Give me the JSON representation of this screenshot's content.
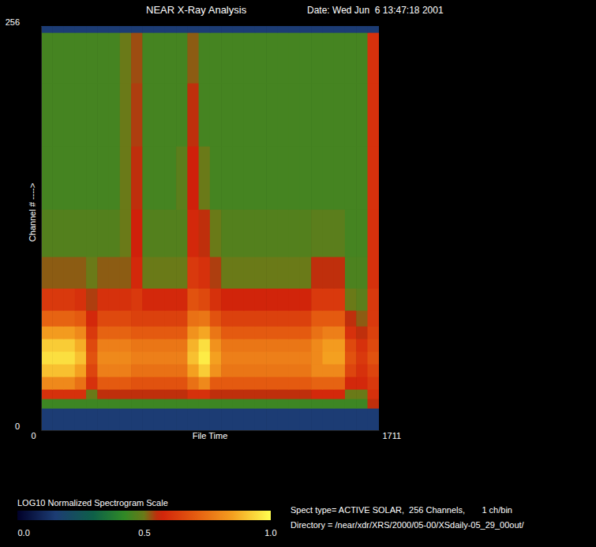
{
  "chart_data": {
    "type": "heatmap",
    "title": "NEAR X-Ray Analysis",
    "subtitle": "Date: Wed Jun  6 13:47:18 2001",
    "x_label": "File Time",
    "y_label": "Channel # ---->",
    "xlim": [
      0,
      1711
    ],
    "ylim": [
      0,
      256
    ],
    "xticks": [
      0,
      1711
    ],
    "yticks": [
      0,
      256
    ],
    "x_edges": [
      0,
      57,
      114,
      171,
      228,
      285,
      342,
      399,
      456,
      513,
      570,
      627,
      684,
      741,
      798,
      855,
      912,
      969,
      1026,
      1083,
      1140,
      1197,
      1254,
      1311,
      1368,
      1425,
      1482,
      1539,
      1596,
      1653,
      1711
    ],
    "y_edges": [
      0,
      14,
      20,
      26,
      34,
      42,
      50,
      58,
      66,
      76,
      90,
      110,
      140,
      180,
      220,
      252,
      256
    ],
    "z": [
      [
        0.15,
        0.15,
        0.15,
        0.15,
        0.15,
        0.15,
        0.15,
        0.15,
        0.15,
        0.15,
        0.15,
        0.15,
        0.15,
        0.15,
        0.15,
        0.15,
        0.15,
        0.15,
        0.15,
        0.15,
        0.15,
        0.15,
        0.15,
        0.15,
        0.15,
        0.15,
        0.15,
        0.15,
        0.15,
        0.15
      ],
      [
        0.44,
        0.44,
        0.44,
        0.44,
        0.44,
        0.44,
        0.44,
        0.44,
        0.44,
        0.44,
        0.44,
        0.44,
        0.44,
        0.44,
        0.44,
        0.44,
        0.44,
        0.44,
        0.44,
        0.44,
        0.44,
        0.44,
        0.44,
        0.44,
        0.44,
        0.44,
        0.44,
        0.44,
        0.44,
        0.55
      ],
      [
        0.6,
        0.6,
        0.6,
        0.6,
        0.5,
        0.55,
        0.55,
        0.55,
        0.55,
        0.55,
        0.55,
        0.55,
        0.55,
        0.6,
        0.6,
        0.55,
        0.55,
        0.55,
        0.55,
        0.55,
        0.55,
        0.55,
        0.55,
        0.55,
        0.58,
        0.58,
        0.58,
        0.5,
        0.5,
        0.6
      ],
      [
        0.8,
        0.8,
        0.8,
        0.75,
        0.6,
        0.7,
        0.7,
        0.7,
        0.68,
        0.68,
        0.68,
        0.68,
        0.68,
        0.75,
        0.8,
        0.7,
        0.7,
        0.7,
        0.7,
        0.7,
        0.7,
        0.7,
        0.7,
        0.7,
        0.72,
        0.72,
        0.72,
        0.58,
        0.58,
        0.62
      ],
      [
        0.9,
        0.9,
        0.9,
        0.85,
        0.65,
        0.78,
        0.78,
        0.78,
        0.75,
        0.75,
        0.75,
        0.75,
        0.75,
        0.85,
        0.92,
        0.82,
        0.76,
        0.76,
        0.76,
        0.76,
        0.76,
        0.76,
        0.76,
        0.76,
        0.8,
        0.8,
        0.8,
        0.65,
        0.6,
        0.65
      ],
      [
        0.95,
        0.95,
        0.95,
        0.9,
        0.68,
        0.8,
        0.8,
        0.8,
        0.78,
        0.78,
        0.78,
        0.78,
        0.78,
        0.9,
        0.97,
        0.85,
        0.78,
        0.78,
        0.78,
        0.78,
        0.78,
        0.78,
        0.78,
        0.78,
        0.8,
        0.85,
        0.85,
        0.68,
        0.62,
        0.68
      ],
      [
        0.92,
        0.92,
        0.92,
        0.87,
        0.66,
        0.78,
        0.78,
        0.78,
        0.76,
        0.76,
        0.76,
        0.76,
        0.76,
        0.88,
        0.95,
        0.82,
        0.76,
        0.76,
        0.76,
        0.76,
        0.76,
        0.76,
        0.76,
        0.76,
        0.8,
        0.84,
        0.84,
        0.66,
        0.6,
        0.66
      ],
      [
        0.84,
        0.84,
        0.84,
        0.8,
        0.62,
        0.72,
        0.72,
        0.72,
        0.7,
        0.7,
        0.7,
        0.7,
        0.7,
        0.82,
        0.86,
        0.76,
        0.7,
        0.7,
        0.7,
        0.7,
        0.7,
        0.7,
        0.7,
        0.7,
        0.75,
        0.78,
        0.78,
        0.6,
        0.55,
        0.64
      ],
      [
        0.72,
        0.72,
        0.72,
        0.7,
        0.58,
        0.66,
        0.66,
        0.66,
        0.64,
        0.64,
        0.64,
        0.64,
        0.64,
        0.75,
        0.76,
        0.68,
        0.64,
        0.64,
        0.64,
        0.64,
        0.64,
        0.64,
        0.64,
        0.64,
        0.7,
        0.7,
        0.7,
        0.55,
        0.52,
        0.62
      ],
      [
        0.62,
        0.62,
        0.62,
        0.6,
        0.54,
        0.6,
        0.6,
        0.6,
        0.62,
        0.58,
        0.58,
        0.58,
        0.58,
        0.68,
        0.66,
        0.6,
        0.57,
        0.57,
        0.57,
        0.57,
        0.57,
        0.57,
        0.57,
        0.57,
        0.62,
        0.62,
        0.62,
        0.5,
        0.48,
        0.62
      ],
      [
        0.52,
        0.52,
        0.52,
        0.52,
        0.5,
        0.52,
        0.52,
        0.52,
        0.58,
        0.5,
        0.5,
        0.5,
        0.5,
        0.62,
        0.6,
        0.54,
        0.5,
        0.5,
        0.5,
        0.5,
        0.5,
        0.5,
        0.5,
        0.5,
        0.55,
        0.55,
        0.55,
        0.46,
        0.46,
        0.6
      ],
      [
        0.47,
        0.47,
        0.47,
        0.47,
        0.47,
        0.47,
        0.47,
        0.5,
        0.56,
        0.47,
        0.47,
        0.47,
        0.47,
        0.58,
        0.55,
        0.5,
        0.47,
        0.47,
        0.47,
        0.47,
        0.47,
        0.47,
        0.47,
        0.47,
        0.48,
        0.48,
        0.48,
        0.45,
        0.45,
        0.6
      ],
      [
        0.45,
        0.45,
        0.45,
        0.45,
        0.45,
        0.45,
        0.45,
        0.5,
        0.55,
        0.45,
        0.45,
        0.45,
        0.48,
        0.56,
        0.5,
        0.45,
        0.45,
        0.45,
        0.45,
        0.45,
        0.45,
        0.45,
        0.45,
        0.45,
        0.45,
        0.45,
        0.45,
        0.45,
        0.45,
        0.6
      ],
      [
        0.45,
        0.45,
        0.45,
        0.45,
        0.45,
        0.45,
        0.45,
        0.5,
        0.54,
        0.45,
        0.45,
        0.45,
        0.45,
        0.55,
        0.45,
        0.45,
        0.45,
        0.45,
        0.45,
        0.45,
        0.45,
        0.45,
        0.45,
        0.45,
        0.45,
        0.45,
        0.45,
        0.45,
        0.45,
        0.6
      ],
      [
        0.45,
        0.45,
        0.45,
        0.45,
        0.45,
        0.45,
        0.45,
        0.5,
        0.53,
        0.45,
        0.45,
        0.45,
        0.45,
        0.52,
        0.45,
        0.45,
        0.45,
        0.45,
        0.45,
        0.45,
        0.45,
        0.45,
        0.45,
        0.45,
        0.45,
        0.45,
        0.45,
        0.45,
        0.45,
        0.6
      ],
      [
        0.15,
        0.15,
        0.15,
        0.15,
        0.15,
        0.15,
        0.15,
        0.15,
        0.15,
        0.15,
        0.15,
        0.15,
        0.15,
        0.15,
        0.15,
        0.15,
        0.15,
        0.15,
        0.15,
        0.15,
        0.15,
        0.15,
        0.15,
        0.15,
        0.15,
        0.15,
        0.15,
        0.15,
        0.15,
        0.15
      ]
    ],
    "colorbar": {
      "title": "LOG10 Normalized Spectrogram Scale",
      "range": [
        0,
        1
      ],
      "ticks": [
        {
          "value": 0,
          "label": "0.0"
        },
        {
          "value": 0.5,
          "label": "0.5"
        },
        {
          "value": 1,
          "label": "1.0"
        }
      ]
    },
    "annotations": [
      "Spect type= ACTIVE SOLAR,  256 Channels,       1 ch/bin",
      "Directory = /near/xdr/XRS/2000/05-00/XSdaily-05_29_00out/"
    ]
  }
}
